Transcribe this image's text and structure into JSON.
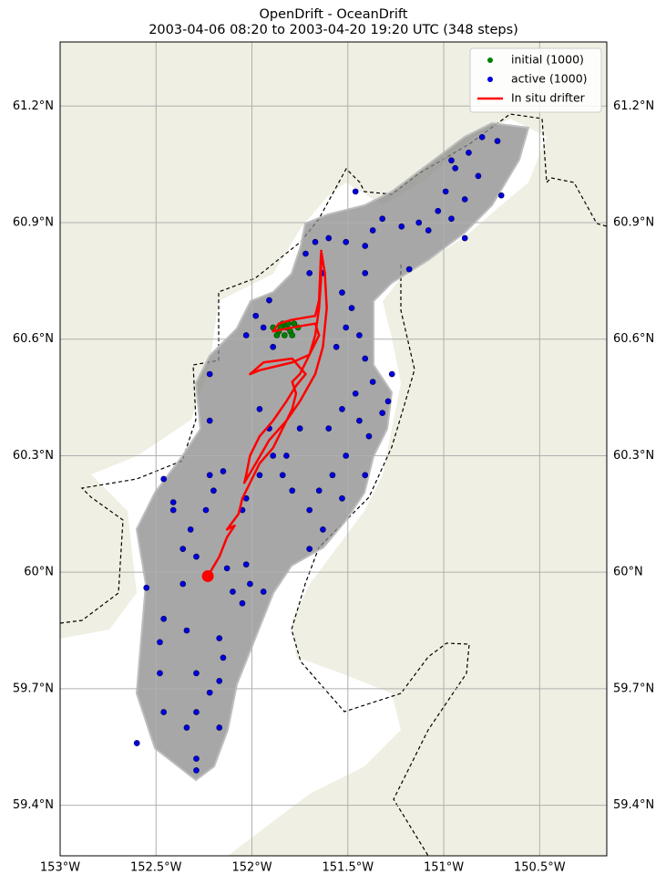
{
  "chart_data": {
    "type": "scatter",
    "title": "OpenDrift - OceanDrift",
    "subtitle": "2003-04-06 08:20 to 2003-04-20 19:20 UTC (348 steps)",
    "xlim": [
      -153.0,
      -150.15
    ],
    "ylim": [
      59.27,
      61.365
    ],
    "xticks": [
      {
        "value": -153,
        "label": "153°W"
      },
      {
        "value": -152.5,
        "label": "152.5°W"
      },
      {
        "value": -152,
        "label": "152°W"
      },
      {
        "value": -151.5,
        "label": "151.5°W"
      },
      {
        "value": -151,
        "label": "151°W"
      },
      {
        "value": -150.5,
        "label": "150.5°W"
      }
    ],
    "yticks": [
      {
        "value": 59.4,
        "label": "59.4°N"
      },
      {
        "value": 59.7,
        "label": "59.7°N"
      },
      {
        "value": 60,
        "label": "60°N"
      },
      {
        "value": 60.3,
        "label": "60.3°N"
      },
      {
        "value": 60.6,
        "label": "60.6°N"
      },
      {
        "value": 60.9,
        "label": "60.9°N"
      },
      {
        "value": 61.2,
        "label": "61.2°N"
      }
    ],
    "grid": true,
    "legend": "upper right",
    "series": [
      {
        "name": "initial (1000)",
        "color": "green",
        "kind": "scatter",
        "x": [
          -151.89,
          -151.86,
          -151.84,
          -151.82,
          -151.8,
          -151.78,
          -151.76,
          -151.87,
          -151.83,
          -151.79,
          -151.85,
          -151.81
        ],
        "values": [
          60.63,
          60.62,
          60.64,
          60.63,
          60.62,
          60.64,
          60.63,
          60.61,
          60.61,
          60.61,
          60.63,
          60.64
        ]
      },
      {
        "name": "active (1000)",
        "color": "#0000dd",
        "kind": "scatter",
        "x": [
          -150.8,
          -150.72,
          -150.87,
          -150.94,
          -150.82,
          -150.99,
          -150.89,
          -151.03,
          -150.96,
          -151.13,
          -151.08,
          -151.22,
          -151.32,
          -151.37,
          -151.41,
          -151.51,
          -151.6,
          -151.67,
          -151.72,
          -151.7,
          -151.63,
          -151.41,
          -151.18,
          -150.89,
          -150.96,
          -150.7,
          -151.46,
          -151.53,
          -151.48,
          -151.51,
          -151.56,
          -151.44,
          -151.41,
          -151.37,
          -151.46,
          -151.53,
          -151.6,
          -151.44,
          -151.39,
          -151.51,
          -151.58,
          -151.65,
          -151.7,
          -151.63,
          -151.7,
          -151.53,
          -151.41,
          -151.29,
          -151.32,
          -151.27,
          -151.98,
          -151.94,
          -151.89,
          -152.03,
          -151.91,
          -151.96,
          -151.91,
          -151.89,
          -151.96,
          -152.03,
          -152.05,
          -152.15,
          -152.2,
          -152.24,
          -152.32,
          -152.29,
          -152.36,
          -152.41,
          -152.46,
          -152.22,
          -152.22,
          -152.22,
          -152.03,
          -152.01,
          -152.05,
          -152.13,
          -152.1,
          -151.94,
          -152.17,
          -152.15,
          -152.17,
          -152.22,
          -152.29,
          -152.29,
          -152.34,
          -152.29,
          -152.29,
          -152.17,
          -152.46,
          -152.48,
          -152.6,
          -152.48,
          -152.34,
          -152.55,
          -152.46,
          -152.36,
          -152.41,
          -151.75,
          -151.82,
          -151.79,
          -151.84
        ],
        "values": [
          61.12,
          61.11,
          61.08,
          61.04,
          61.02,
          60.98,
          60.96,
          60.93,
          60.91,
          60.9,
          60.88,
          60.89,
          60.91,
          60.88,
          60.84,
          60.85,
          60.86,
          60.85,
          60.82,
          60.77,
          60.77,
          60.77,
          60.78,
          60.86,
          61.06,
          60.97,
          60.98,
          60.72,
          60.68,
          60.63,
          60.58,
          60.61,
          60.55,
          60.49,
          60.46,
          60.42,
          60.37,
          60.39,
          60.35,
          60.3,
          60.25,
          60.21,
          60.16,
          60.11,
          60.06,
          60.19,
          60.25,
          60.44,
          60.41,
          60.51,
          60.66,
          60.63,
          60.58,
          60.61,
          60.7,
          60.42,
          60.37,
          60.3,
          60.25,
          60.19,
          60.16,
          60.26,
          60.21,
          60.16,
          60.11,
          60.04,
          59.97,
          60.18,
          60.24,
          60.25,
          60.39,
          60.51,
          60.02,
          59.97,
          59.92,
          60.01,
          59.95,
          59.95,
          59.83,
          59.78,
          59.72,
          59.69,
          59.74,
          59.64,
          59.6,
          59.52,
          59.49,
          59.6,
          59.64,
          59.74,
          59.56,
          59.82,
          59.85,
          59.96,
          59.88,
          60.06,
          60.16,
          60.37,
          60.3,
          60.21,
          60.25
        ]
      },
      {
        "name": "In situ drifter",
        "color": "red",
        "kind": "line",
        "x": [
          -152.23,
          -152.17,
          -152.13,
          -152.09,
          -152.13,
          -152.07,
          -152.05,
          -152.01,
          -151.96,
          -151.89,
          -151.84,
          -151.79,
          -151.77,
          -151.79,
          -151.75,
          -151.7,
          -151.67,
          -151.65,
          -151.64,
          -151.64,
          -151.65,
          -151.67,
          -151.79,
          -151.86,
          -151.89,
          -151.79,
          -151.67,
          -151.65,
          -151.7,
          -151.79,
          -151.96,
          -152.01,
          -151.94,
          -151.79,
          -151.72,
          -151.77,
          -151.82,
          -151.89,
          -151.96,
          -152.01,
          -152.03,
          -152.04,
          -151.98,
          -151.91,
          -151.82,
          -151.75,
          -151.67,
          -151.63,
          -151.61,
          -151.62,
          -151.64
        ],
        "values": [
          59.99,
          60.04,
          60.09,
          60.12,
          60.11,
          60.15,
          60.19,
          60.23,
          60.28,
          60.32,
          60.37,
          60.42,
          60.46,
          60.49,
          60.51,
          60.56,
          60.61,
          60.68,
          60.75,
          60.82,
          60.7,
          60.66,
          60.65,
          60.64,
          60.62,
          60.63,
          60.64,
          60.61,
          60.56,
          60.54,
          60.52,
          60.51,
          60.54,
          60.55,
          60.51,
          60.48,
          60.44,
          60.39,
          60.35,
          60.3,
          60.25,
          60.23,
          60.28,
          60.34,
          60.39,
          60.44,
          60.51,
          60.58,
          60.68,
          60.77,
          60.83
        ]
      }
    ]
  }
}
